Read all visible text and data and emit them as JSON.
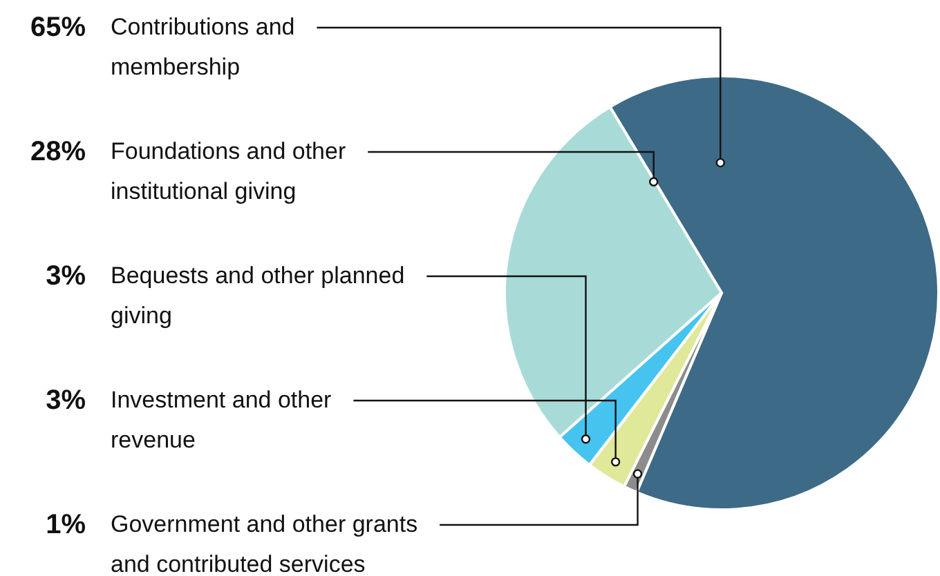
{
  "chart_data": {
    "type": "pie",
    "categories": [
      "Contributions and membership",
      "Foundations and other institutional giving",
      "Bequests and other planned giving",
      "Investment and other revenue",
      "Government and other grants and contributed services"
    ],
    "values": [
      65,
      28,
      3,
      3,
      1
    ],
    "value_labels": [
      "65%",
      "28%",
      "3%",
      "3%",
      "1%"
    ],
    "colors": [
      "#3d6b87",
      "#a8dbd8",
      "#46c3ef",
      "#e0e899",
      "#8c8c8c"
    ]
  }
}
